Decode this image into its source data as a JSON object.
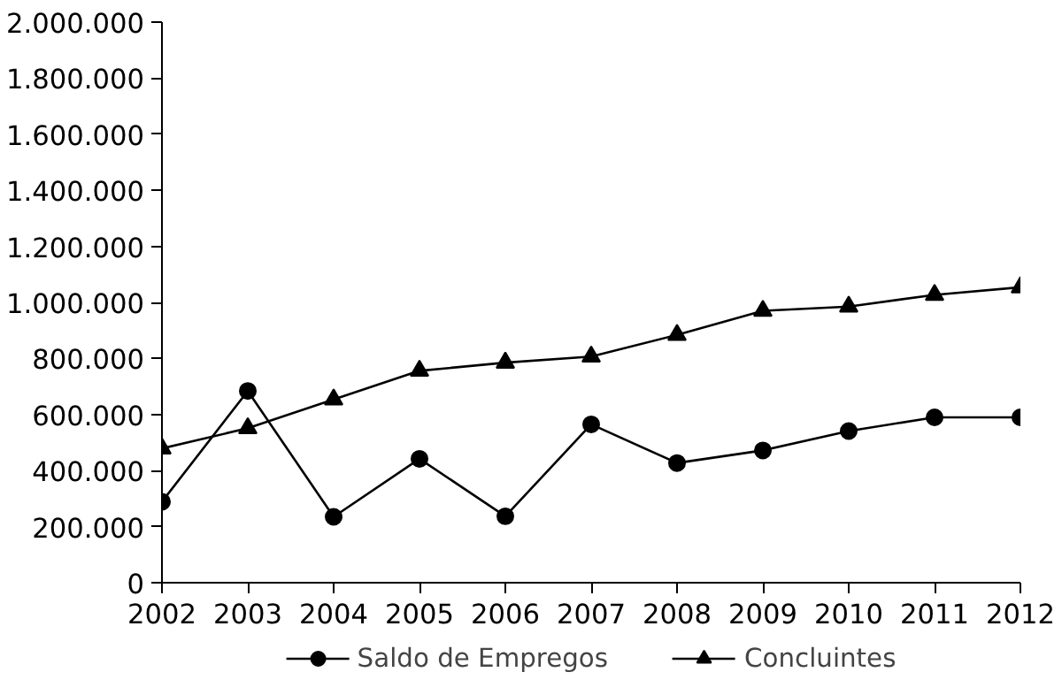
{
  "chart_data": {
    "type": "line",
    "x": [
      2002,
      2003,
      2004,
      2005,
      2006,
      2007,
      2008,
      2009,
      2010,
      2011,
      2012
    ],
    "xlim": [
      2002,
      2012
    ],
    "xticks": [
      2002,
      2003,
      2004,
      2005,
      2006,
      2007,
      2008,
      2009,
      2010,
      2011,
      2012
    ],
    "ylim": [
      0,
      2000000
    ],
    "yticks": [
      0,
      {
        "value": 200000,
        "label": "200.000"
      },
      {
        "value": 400000,
        "label": "400.000"
      },
      {
        "value": 600000,
        "label": "600.000"
      },
      {
        "value": 800000,
        "label": "800.000"
      },
      {
        "value": 1000000,
        "label": "1.000.000"
      },
      {
        "value": 1200000,
        "label": "1.200.000"
      },
      {
        "value": 1400000,
        "label": "1.400.000"
      },
      {
        "value": 1600000,
        "label": "1.600.000"
      },
      {
        "value": 1800000,
        "label": "1.800.000"
      },
      {
        "value": 2000000,
        "label": "2.000.000"
      }
    ],
    "series": [
      {
        "name": "Saldo de Empregos",
        "color": "#000000",
        "marker": "circle",
        "values": [
          289000,
          684000,
          235000,
          442000,
          237000,
          565000,
          427000,
          472000,
          541000,
          590000,
          590000
        ]
      },
      {
        "name": "Concluintes",
        "color": "#000000",
        "marker": "triangle",
        "values": [
          479000,
          551000,
          654000,
          756000,
          785000,
          807000,
          884000,
          970000,
          985000,
          1027000,
          1054000
        ]
      }
    ],
    "grid": false,
    "legend": "bottom",
    "line_style": "solid"
  }
}
